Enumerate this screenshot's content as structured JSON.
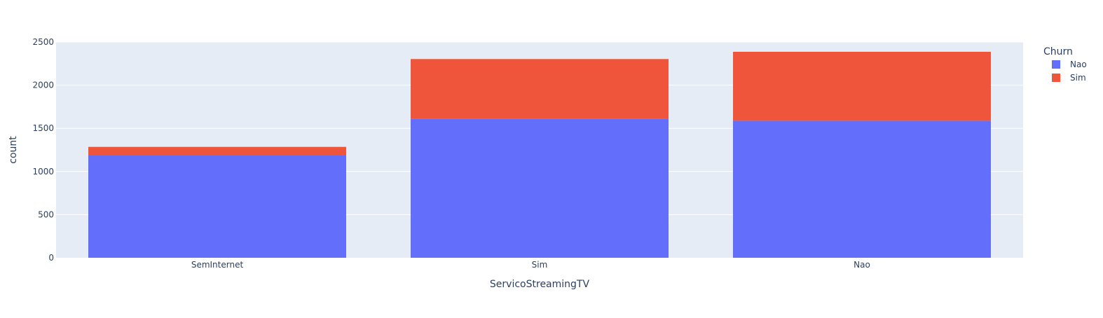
{
  "chart_data": {
    "type": "bar",
    "barmode": "stack",
    "title": "",
    "xlabel": "ServicoStreamingTV",
    "ylabel": "count",
    "categories": [
      "SemInternet",
      "Sim",
      "Nao"
    ],
    "series": [
      {
        "name": "Nao",
        "color": "#636efa",
        "values": [
          1185,
          1613,
          1588
        ]
      },
      {
        "name": "Sim",
        "color": "#ef553b",
        "values": [
          100,
          690,
          799
        ]
      }
    ],
    "ylim": [
      0,
      2500
    ],
    "yticks": [
      0,
      500,
      1000,
      1500,
      2000,
      2500
    ],
    "yticklabels": [
      "0",
      "500",
      "1000",
      "1500",
      "2000",
      "2500"
    ],
    "grid": true,
    "legend": {
      "title": "Churn",
      "position": "top-right"
    },
    "colors": {
      "plot_background": "#e5ecf6",
      "grid": "#ffffff",
      "text": "#2a3f5f"
    }
  }
}
